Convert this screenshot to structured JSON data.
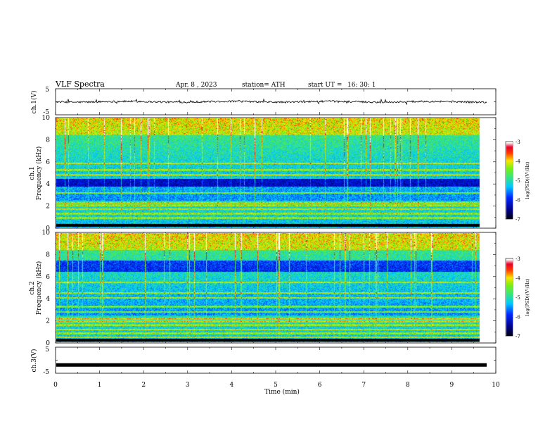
{
  "header": {
    "title": "VLF  Spectra",
    "date": "Apr. 8  , 2023",
    "station": "station= ATH",
    "start_ut_label": "start  UT  =",
    "start_ut_value": "16: 30: 1"
  },
  "chart_data": [
    {
      "type": "line",
      "panel": "ch1-waveform",
      "ylabel": "ch.1(V)",
      "yticks": [
        "5",
        "-5"
      ],
      "ylim": [
        -5,
        5
      ],
      "xlim": [
        0,
        10
      ],
      "x_extent_min": 9.8,
      "baseline": 0,
      "amplitude": 0.35
    },
    {
      "type": "heatmap",
      "panel": "ch1-spectrogram",
      "ylabel_lines": [
        "ch.1",
        "Frequency  (kHz)"
      ],
      "yticks": [
        "0",
        "2",
        "4",
        "6",
        "8",
        "10"
      ],
      "ylim": [
        0,
        10
      ],
      "xlim": [
        0,
        10
      ],
      "x_extent_min": 9.8,
      "bright_bands_khz": [
        0.3,
        0.9,
        1.3,
        1.7,
        2.05,
        2.3,
        3.2,
        4.55,
        4.85,
        5.3,
        5.9
      ],
      "dark_band_khz": [
        3.8,
        4.6
      ],
      "colorbar": {
        "label": "log(PSD)(V²/Hz)",
        "ticks": [
          "-3",
          "-4",
          "-5",
          "-6",
          "-7"
        ],
        "range": [
          -7,
          -3
        ]
      }
    },
    {
      "type": "heatmap",
      "panel": "ch2-spectrogram",
      "ylabel_lines": [
        "ch.2",
        "Frequency  (kHz)"
      ],
      "yticks": [
        "0",
        "2",
        "4",
        "6",
        "8",
        "10"
      ],
      "ylim": [
        0,
        10
      ],
      "xlim": [
        0,
        10
      ],
      "x_extent_min": 9.8,
      "bright_bands_khz": [
        0.5,
        0.85,
        1.2,
        1.6,
        1.95,
        2.2,
        2.8,
        3.3,
        4.1,
        4.55,
        5.5
      ],
      "dark_band_khz": [
        6.5,
        7.5
      ],
      "colorbar": {
        "label": "log(PSD)(V²/Hz)",
        "ticks": [
          "-3",
          "-4",
          "-5",
          "-6",
          "-7"
        ],
        "range": [
          -7,
          -3
        ]
      }
    },
    {
      "type": "line",
      "panel": "ch3-waveform",
      "ylabel": "ch.3(V)",
      "yticks": [
        "5",
        "-5"
      ],
      "ylim": [
        -5,
        5
      ],
      "xlim": [
        0,
        10
      ],
      "x_extent_min": 9.8,
      "baseline": -1.8,
      "amplitude": 0.05
    }
  ],
  "xaxis": {
    "label": "Time  (min)",
    "ticks": [
      "0",
      "1",
      "2",
      "3",
      "4",
      "5",
      "6",
      "7",
      "8",
      "9",
      "10"
    ]
  }
}
